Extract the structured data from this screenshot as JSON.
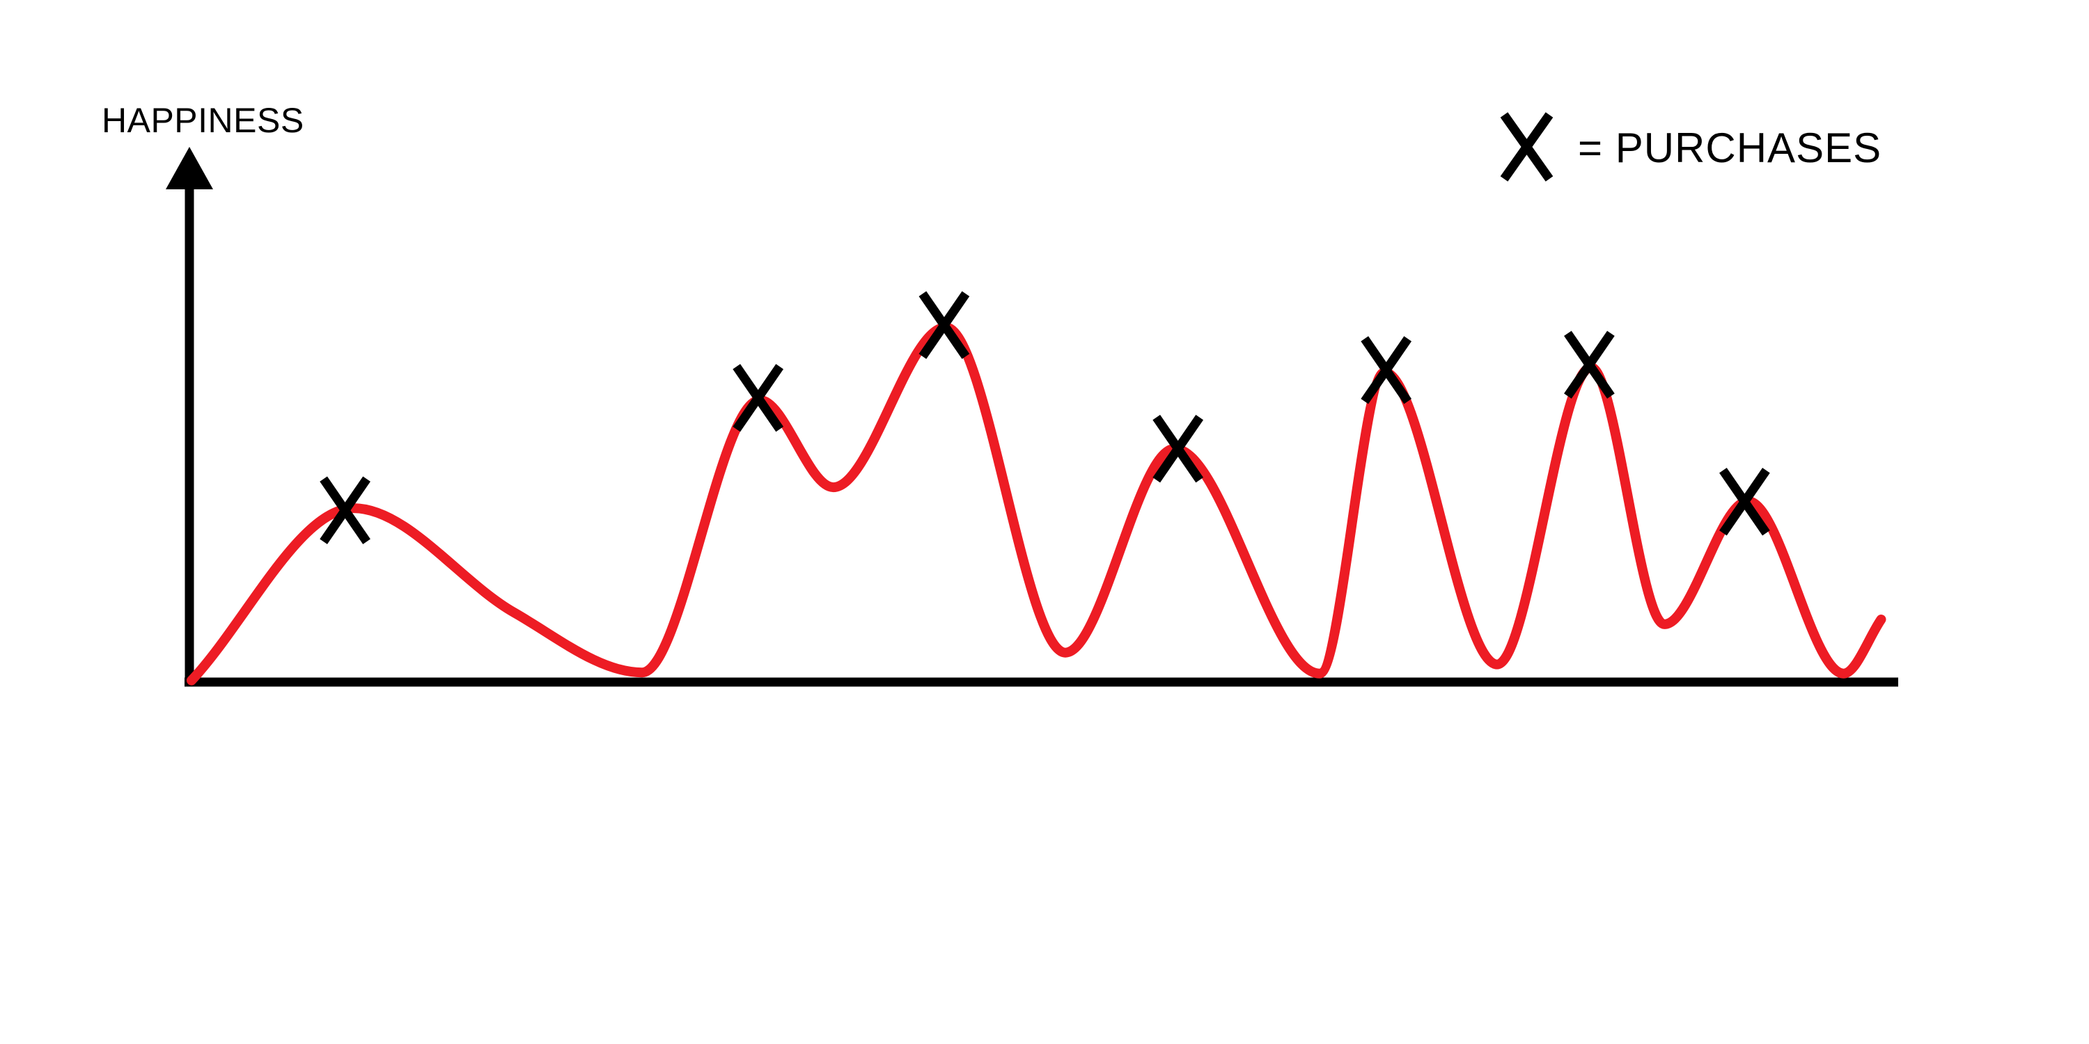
{
  "chart": {
    "y_axis_label": "HAPPINESS",
    "legend_symbol": "X",
    "legend_label": "= PURCHASES"
  },
  "colors": {
    "background": "#FFFFFF",
    "ink": "#000000",
    "curve": "#ED1C24",
    "marker": "#000000"
  },
  "chart_data": {
    "type": "line",
    "title": "",
    "xlabel": "",
    "ylabel": "HAPPINESS",
    "grid": false,
    "x_axis": {
      "range": [
        0,
        100
      ],
      "ticks": "none"
    },
    "y_axis": {
      "range": [
        0,
        100
      ],
      "ticks": "none"
    },
    "legend_position": "top-right",
    "legend": [
      {
        "marker": "X",
        "label": "= PURCHASES"
      }
    ],
    "series": [
      {
        "name": "happiness",
        "color": "#ED1C24",
        "points": [
          {
            "t": 0.0,
            "h": 0.3,
            "kind": "end"
          },
          {
            "t": 9.5,
            "h": 32.5,
            "kind": "peak"
          },
          {
            "t": 18.9,
            "h": 13.0,
            "kind": "pass"
          },
          {
            "t": 26.4,
            "h": 1.8,
            "kind": "trough"
          },
          {
            "t": 33.3,
            "h": 52.7,
            "kind": "peak"
          },
          {
            "t": 37.6,
            "h": 36.4,
            "kind": "trough"
          },
          {
            "t": 44.2,
            "h": 66.3,
            "kind": "peak"
          },
          {
            "t": 51.2,
            "h": 5.5,
            "kind": "trough"
          },
          {
            "t": 57.6,
            "h": 43.6,
            "kind": "peak"
          },
          {
            "t": 66.1,
            "h": 1.6,
            "kind": "trough"
          },
          {
            "t": 69.9,
            "h": 57.9,
            "kind": "peak"
          },
          {
            "t": 76.5,
            "h": 3.3,
            "kind": "trough"
          },
          {
            "t": 82.0,
            "h": 58.8,
            "kind": "peak"
          },
          {
            "t": 86.3,
            "h": 10.8,
            "kind": "trough"
          },
          {
            "t": 91.2,
            "h": 33.8,
            "kind": "peak"
          },
          {
            "t": 96.8,
            "h": 1.6,
            "kind": "trough"
          },
          {
            "t": 99.0,
            "h": 11.7,
            "kind": "end"
          }
        ]
      }
    ],
    "purchases": {
      "marker": "X",
      "color": "#000000",
      "meaning": "PURCHASES",
      "points": [
        {
          "t": 9.0,
          "h": 32.1
        },
        {
          "t": 33.2,
          "h": 53.1
        },
        {
          "t": 44.1,
          "h": 66.7
        },
        {
          "t": 57.8,
          "h": 43.6
        },
        {
          "t": 70.0,
          "h": 58.3
        },
        {
          "t": 81.9,
          "h": 59.3
        },
        {
          "t": 91.0,
          "h": 33.7
        }
      ]
    }
  }
}
